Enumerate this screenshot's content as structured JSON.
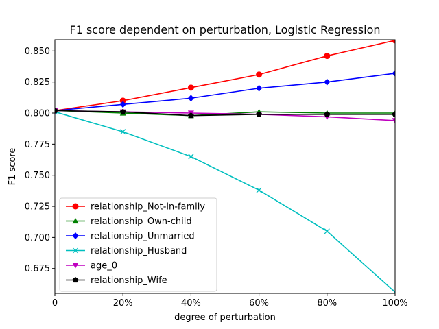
{
  "chart_data": {
    "type": "line",
    "title": "F1 score dependent on perturbation, Logistic Regression",
    "xlabel": "degree of perturbation",
    "ylabel": "F1 score",
    "x": [
      0,
      20,
      40,
      60,
      80,
      100
    ],
    "x_tick_labels": [
      "0",
      "20%",
      "40%",
      "60%",
      "80%",
      "100%"
    ],
    "xlim": [
      0,
      100
    ],
    "ylim": [
      0.655,
      0.859
    ],
    "y_ticks": [
      0.675,
      0.7,
      0.725,
      0.75,
      0.775,
      0.8,
      0.825,
      0.85
    ],
    "y_tick_labels": [
      "0.675",
      "0.700",
      "0.725",
      "0.750",
      "0.775",
      "0.800",
      "0.825",
      "0.850"
    ],
    "grid": false,
    "legend_position": "lower-left",
    "series": [
      {
        "name": "relationship_Not-in-family",
        "color": "#ff0000",
        "marker": "circle",
        "values": [
          0.802,
          0.81,
          0.8205,
          0.831,
          0.846,
          0.8585
        ]
      },
      {
        "name": "relationship_Own-child",
        "color": "#008000",
        "marker": "triangle-up",
        "values": [
          0.802,
          0.8,
          0.798,
          0.801,
          0.8,
          0.8
        ]
      },
      {
        "name": "relationship_Unmarried",
        "color": "#0000ff",
        "marker": "diamond",
        "values": [
          0.802,
          0.807,
          0.812,
          0.82,
          0.825,
          0.832
        ]
      },
      {
        "name": "relationship_Husband",
        "color": "#00bfbf",
        "marker": "x",
        "values": [
          0.801,
          0.785,
          0.765,
          0.738,
          0.705,
          0.656
        ]
      },
      {
        "name": "age_0",
        "color": "#bf00bf",
        "marker": "triangle-down",
        "values": [
          0.802,
          0.801,
          0.8,
          0.799,
          0.797,
          0.794
        ]
      },
      {
        "name": "relationship_Wife",
        "color": "#000000",
        "marker": "pentagon",
        "values": [
          0.802,
          0.801,
          0.798,
          0.799,
          0.799,
          0.799
        ]
      }
    ]
  }
}
